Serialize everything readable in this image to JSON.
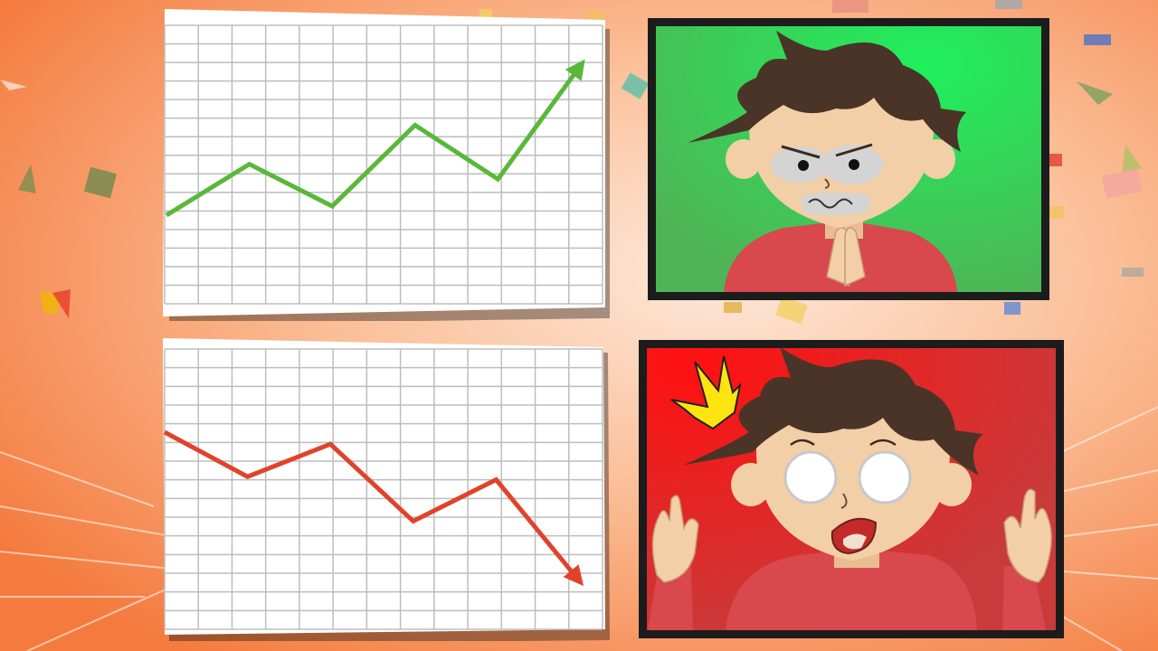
{
  "colors": {
    "background_center": "#fde5d6",
    "background_edge": "#f57a3e",
    "paper": "#ffffff",
    "grid": "#bcbcbc",
    "trend_up": "#59b83a",
    "trend_down": "#e0432c",
    "panel_frame": "#1c1c1c",
    "panel_happy_bg": "#3fc24f",
    "panel_shock_bg": "#e81e1e",
    "hair": "#4a3428",
    "skin": "#f2cfa7",
    "shirt": "#d8484c",
    "burst": "#ffe40f"
  },
  "charts": [
    {
      "name": "rising-chart",
      "trend": "up",
      "points": [
        [
          0.0,
          0.0
        ],
        [
          1.0,
          1.7
        ],
        [
          2.0,
          0.3
        ],
        [
          3.0,
          3.0
        ],
        [
          4.0,
          1.2
        ],
        [
          5.0,
          5.0
        ]
      ]
    },
    {
      "name": "falling-chart",
      "trend": "down",
      "points": [
        [
          0.0,
          5.0
        ],
        [
          1.0,
          3.5
        ],
        [
          2.0,
          4.6
        ],
        [
          3.0,
          2.0
        ],
        [
          4.0,
          3.4
        ],
        [
          5.0,
          0.0
        ]
      ]
    }
  ],
  "panels": [
    {
      "name": "happy-character-panel",
      "expression": "smug-grin",
      "icon": "scheming-character-icon"
    },
    {
      "name": "shocked-character-panel",
      "expression": "shocked",
      "icon": "shocked-character-icon"
    }
  ]
}
